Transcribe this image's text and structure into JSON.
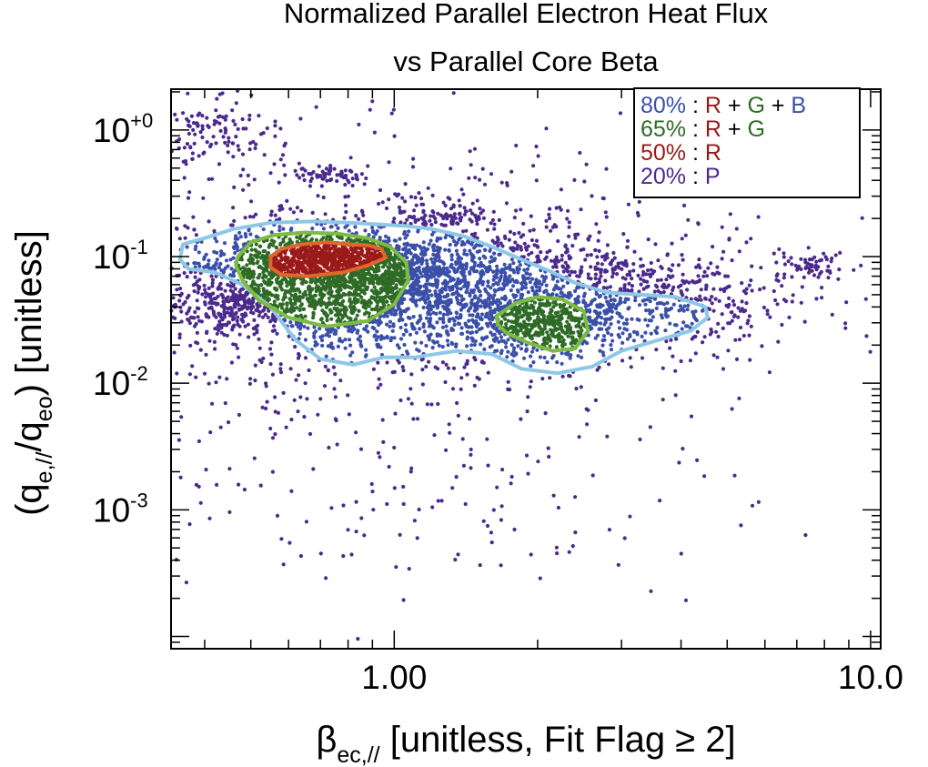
{
  "chart_data": {
    "type": "scatter",
    "title": [
      "Normalized Parallel Electron Heat Flux",
      "vs Parallel Core Beta"
    ],
    "xlabel": {
      "symbol": "β",
      "sub": "ec,//",
      "rest": " [unitless, Fit Flag ≥ 2]"
    },
    "ylabel": {
      "open": "(q",
      "sub1": "e,//",
      "mid": "/q",
      "sub2": "eo",
      "rest": ") [unitless]"
    },
    "xscale": "log",
    "yscale": "log",
    "xlim": [
      0.34,
      10.5
    ],
    "ylim": [
      8e-05,
      2.1
    ],
    "x_ticks": [
      {
        "value": 1.0,
        "label": "1.00"
      },
      {
        "value": 10.0,
        "label": "10.0"
      }
    ],
    "y_ticks": [
      {
        "value": 1.0,
        "base": "10",
        "exp": "+0"
      },
      {
        "value": 0.1,
        "base": "10",
        "exp": "-1"
      },
      {
        "value": 0.01,
        "base": "10",
        "exp": "-2"
      },
      {
        "value": 0.001,
        "base": "10",
        "exp": "-3"
      }
    ],
    "grid": false,
    "legend": {
      "placement": "top-right",
      "entries": [
        {
          "parts": [
            {
              "text": "80%",
              "color": "#3a4fa8"
            },
            {
              "text": " : ",
              "color": "#000000"
            },
            {
              "text": "R",
              "color": "#9a1a1a"
            },
            {
              "text": " + ",
              "color": "#000000"
            },
            {
              "text": "G",
              "color": "#2e6b26"
            },
            {
              "text": " + ",
              "color": "#000000"
            },
            {
              "text": "B",
              "color": "#3a4fa8"
            }
          ]
        },
        {
          "parts": [
            {
              "text": "65%",
              "color": "#2e6b26"
            },
            {
              "text": " : ",
              "color": "#000000"
            },
            {
              "text": "R",
              "color": "#9a1a1a"
            },
            {
              "text": " + ",
              "color": "#000000"
            },
            {
              "text": "G",
              "color": "#2e6b26"
            }
          ]
        },
        {
          "parts": [
            {
              "text": "50%",
              "color": "#9a1a1a"
            },
            {
              "text": " : ",
              "color": "#000000"
            },
            {
              "text": "R",
              "color": "#9a1a1a"
            }
          ]
        },
        {
          "parts": [
            {
              "text": "20%",
              "color": "#4b2a8c"
            },
            {
              "text": " : ",
              "color": "#000000"
            },
            {
              "text": "P",
              "color": "#4b2a8c"
            }
          ]
        }
      ]
    },
    "colors": {
      "purple_points": "#4b2a8c",
      "blue_points": "#3a4fa8",
      "green_points": "#2e6b26",
      "red_points": "#9a1a1a",
      "contour_80": "#8ec8e6",
      "contour_65": "#7dbb42",
      "contour_50": "#e0662a"
    },
    "contours": [
      {
        "level": "80%",
        "regions": [
          [
            [
              0.36,
              0.125
            ],
            [
              0.4,
              0.14
            ],
            [
              0.46,
              0.165
            ],
            [
              0.55,
              0.185
            ],
            [
              0.68,
              0.19
            ],
            [
              0.8,
              0.185
            ],
            [
              0.92,
              0.18
            ],
            [
              1.05,
              0.175
            ],
            [
              1.2,
              0.165
            ],
            [
              1.4,
              0.145
            ],
            [
              1.6,
              0.12
            ],
            [
              1.85,
              0.095
            ],
            [
              2.1,
              0.078
            ],
            [
              2.4,
              0.062
            ],
            [
              2.8,
              0.052
            ],
            [
              3.3,
              0.05
            ],
            [
              3.9,
              0.048
            ],
            [
              4.5,
              0.04
            ],
            [
              4.55,
              0.033
            ],
            [
              4.2,
              0.026
            ],
            [
              3.6,
              0.022
            ],
            [
              3.0,
              0.018
            ],
            [
              2.6,
              0.0135
            ],
            [
              2.2,
              0.012
            ],
            [
              1.85,
              0.013
            ],
            [
              1.6,
              0.017
            ],
            [
              1.35,
              0.018
            ],
            [
              1.1,
              0.016
            ],
            [
              0.95,
              0.016
            ],
            [
              0.82,
              0.014
            ],
            [
              0.7,
              0.0155
            ],
            [
              0.62,
              0.022
            ],
            [
              0.55,
              0.04
            ],
            [
              0.48,
              0.06
            ],
            [
              0.42,
              0.075
            ],
            [
              0.37,
              0.08
            ],
            [
              0.355,
              0.095
            ]
          ]
        ]
      },
      {
        "level": "65%",
        "regions": [
          [
            [
              0.47,
              0.1
            ],
            [
              0.5,
              0.13
            ],
            [
              0.56,
              0.148
            ],
            [
              0.65,
              0.155
            ],
            [
              0.76,
              0.152
            ],
            [
              0.88,
              0.14
            ],
            [
              0.98,
              0.12
            ],
            [
              1.06,
              0.09
            ],
            [
              1.07,
              0.065
            ],
            [
              1.0,
              0.042
            ],
            [
              0.88,
              0.031
            ],
            [
              0.72,
              0.028
            ],
            [
              0.6,
              0.033
            ],
            [
              0.52,
              0.045
            ],
            [
              0.48,
              0.065
            ],
            [
              0.465,
              0.085
            ]
          ],
          [
            [
              1.64,
              0.034
            ],
            [
              1.8,
              0.043
            ],
            [
              2.0,
              0.048
            ],
            [
              2.25,
              0.046
            ],
            [
              2.5,
              0.037
            ],
            [
              2.55,
              0.026
            ],
            [
              2.4,
              0.0188
            ],
            [
              2.15,
              0.018
            ],
            [
              1.9,
              0.021
            ],
            [
              1.72,
              0.025
            ],
            [
              1.65,
              0.029
            ]
          ]
        ]
      },
      {
        "level": "50%",
        "regions": [
          [
            [
              0.55,
              0.1
            ],
            [
              0.58,
              0.115
            ],
            [
              0.64,
              0.125
            ],
            [
              0.72,
              0.13
            ],
            [
              0.8,
              0.125
            ],
            [
              0.88,
              0.123
            ],
            [
              0.94,
              0.115
            ],
            [
              0.96,
              0.098
            ],
            [
              0.88,
              0.085
            ],
            [
              0.78,
              0.075
            ],
            [
              0.66,
              0.07
            ],
            [
              0.58,
              0.072
            ],
            [
              0.55,
              0.082
            ]
          ]
        ]
      }
    ],
    "point_clusters": [
      {
        "color": "purple",
        "n": 1000,
        "x_median": 1.0,
        "x_log_sigma": 0.34,
        "y_median": 0.055,
        "y_log_sigma": 0.55,
        "note": "broad background"
      },
      {
        "color": "purple",
        "n": 130,
        "x_median": 0.42,
        "x_log_sigma": 0.07,
        "y_median": 0.9,
        "y_log_sigma": 0.15,
        "note": "upper-left band"
      },
      {
        "color": "purple",
        "n": 60,
        "x_median": 0.72,
        "x_log_sigma": 0.04,
        "y_median": 0.45,
        "y_log_sigma": 0.04
      },
      {
        "color": "purple",
        "n": 60,
        "x_median": 1.3,
        "x_log_sigma": 0.05,
        "y_median": 0.21,
        "y_log_sigma": 0.04
      },
      {
        "color": "purple",
        "n": 60,
        "x_median": 7.5,
        "x_log_sigma": 0.04,
        "y_median": 0.085,
        "y_log_sigma": 0.06
      },
      {
        "color": "purple",
        "n": 220,
        "x_median": 4.2,
        "x_log_sigma": 0.12,
        "y_median": 0.04,
        "y_log_sigma": 0.16
      },
      {
        "color": "purple",
        "n": 180,
        "x_median": 0.45,
        "x_log_sigma": 0.08,
        "y_median": 0.04,
        "y_log_sigma": 0.08
      },
      {
        "color": "purple",
        "n": 140,
        "x_median": 1.1,
        "x_log_sigma": 0.35,
        "y_median": 0.0012,
        "y_log_sigma": 0.5,
        "note": "sparse low tail"
      },
      {
        "color": "blue",
        "n": 2000,
        "x_median": 1.25,
        "x_log_sigma": 0.27,
        "y_median": 0.055,
        "y_log_sigma": 0.24
      },
      {
        "color": "green",
        "n": 1100,
        "x_median": 0.75,
        "x_log_sigma": 0.14,
        "y_median": 0.075,
        "y_log_sigma": 0.16
      },
      {
        "color": "green",
        "n": 350,
        "x_median": 2.05,
        "x_log_sigma": 0.06,
        "y_median": 0.029,
        "y_log_sigma": 0.1
      },
      {
        "color": "red",
        "n": 380,
        "x_median": 0.73,
        "x_log_sigma": 0.09,
        "y_median": 0.098,
        "y_log_sigma": 0.08
      }
    ]
  }
}
